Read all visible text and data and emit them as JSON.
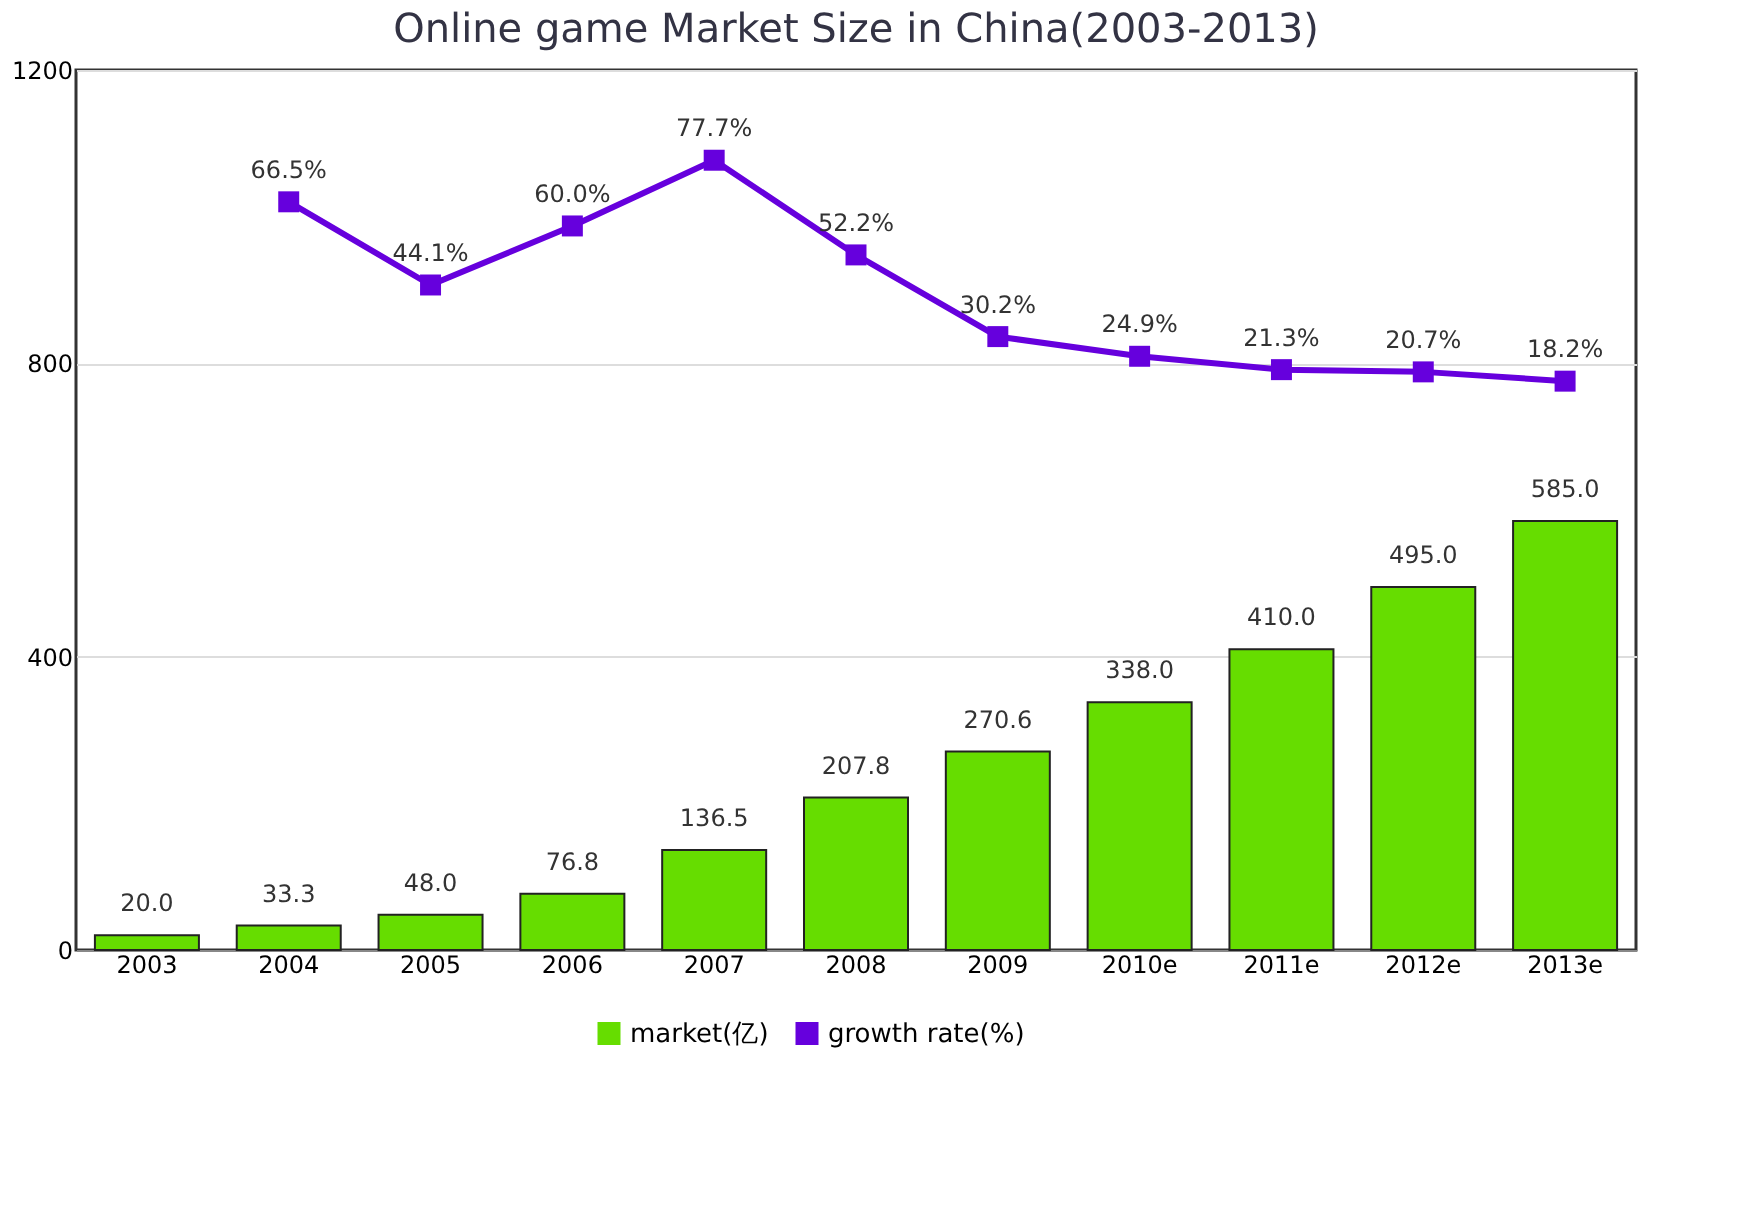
{
  "chart_data": {
    "type": "bar",
    "title": "Online game Market Size in China(2003-2013)",
    "categories": [
      "2003",
      "2004",
      "2005",
      "2006",
      "2007",
      "2008",
      "2009",
      "2010e",
      "2011e",
      "2012e",
      "2013e"
    ],
    "series": [
      {
        "name": "market(亿)",
        "color": "#66dd00",
        "values": [
          20.0,
          33.3,
          48.0,
          76.8,
          136.5,
          207.8,
          270.6,
          338.0,
          410.0,
          495.0,
          585.0
        ],
        "value_labels": [
          "20.0",
          "33.3",
          "48.0",
          "76.8",
          "136.5",
          "207.8",
          "270.6",
          "338.0",
          "410.0",
          "495.0",
          "585.0"
        ]
      },
      {
        "name": "growth rate(%)",
        "type": "line",
        "axis": "y2",
        "color": "#6600dd",
        "values": [
          null,
          66.5,
          44.1,
          60.0,
          77.7,
          52.2,
          30.2,
          24.9,
          21.3,
          20.7,
          18.2
        ],
        "value_labels": [
          null,
          "66.5%",
          "44.1%",
          "60.0%",
          "77.7%",
          "52.2%",
          "30.2%",
          "24.9%",
          "21.3%",
          "20.7%",
          "18.2%"
        ]
      }
    ],
    "ylim": [
      0,
      1200
    ],
    "yticks": [
      0,
      400,
      800,
      1200
    ],
    "y2lim": [
      -135,
      102
    ],
    "grid": "y",
    "legend": "bottom",
    "marker": "square",
    "line_style": "solid"
  }
}
